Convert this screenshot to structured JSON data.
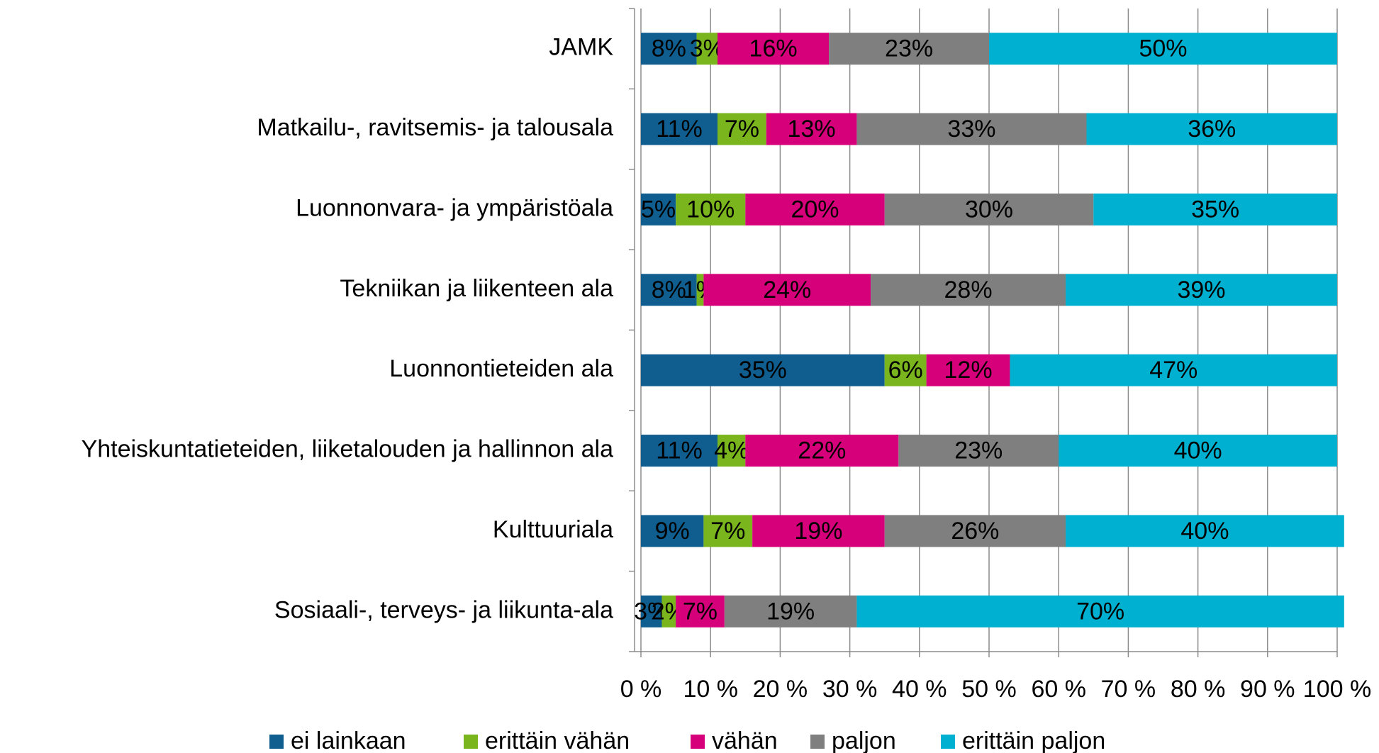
{
  "chart_data": {
    "type": "stacked_barh",
    "categories": [
      "JAMK",
      "Matkailu-, ravitsemis- ja talousala",
      "Luonnonvara- ja ympäristöala",
      "Tekniikan ja liikenteen ala",
      "Luonnontieteiden ala",
      "Yhteiskuntatieteiden, liiketalouden ja hallinnon ala",
      "Kulttuuriala",
      "Sosiaali-, terveys- ja liikunta-ala"
    ],
    "series": [
      {
        "name": "ei lainkaan",
        "color": "#0f5e8f",
        "values": [
          8,
          11,
          5,
          8,
          35,
          11,
          9,
          3
        ],
        "value_labels": [
          "8%",
          "11%",
          "5%",
          "8%",
          "35%",
          "11%",
          "9%",
          "3%"
        ]
      },
      {
        "name": "erittäin vähän",
        "color": "#7ab51d",
        "values": [
          3,
          7,
          10,
          1,
          6,
          4,
          7,
          2
        ],
        "value_labels": [
          "3%",
          "7%",
          "10%",
          "1%",
          "6%",
          "4%",
          "7%",
          "2%"
        ]
      },
      {
        "name": "vähän",
        "color": "#d6007a",
        "values": [
          16,
          13,
          20,
          24,
          12,
          22,
          19,
          7
        ],
        "value_labels": [
          "16%",
          "13%",
          "20%",
          "24%",
          "12%",
          "22%",
          "19%",
          "7%"
        ]
      },
      {
        "name": "paljon",
        "color": "#7f7f7f",
        "values": [
          23,
          33,
          30,
          28,
          null,
          23,
          26,
          19
        ],
        "value_labels": [
          "23%",
          "33%",
          "30%",
          "28%",
          null,
          "23%",
          "26%",
          "19%"
        ]
      },
      {
        "name": "erittäin paljon",
        "color": "#00b0d0",
        "values": [
          50,
          36,
          35,
          39,
          47,
          40,
          40,
          70
        ],
        "value_labels": [
          "50%",
          "36%",
          "35%",
          "39%",
          "47%",
          "40%",
          "40%",
          "70%"
        ]
      }
    ],
    "xlim": [
      0,
      100
    ],
    "xticks": [
      {
        "value": 0,
        "label": "0 %"
      },
      {
        "value": 10,
        "label": "10 %"
      },
      {
        "value": 20,
        "label": "20 %"
      },
      {
        "value": 30,
        "label": "30 %"
      },
      {
        "value": 40,
        "label": "40 %"
      },
      {
        "value": 50,
        "label": "50 %"
      },
      {
        "value": 60,
        "label": "60 %"
      },
      {
        "value": 70,
        "label": "70 %"
      },
      {
        "value": 80,
        "label": "80 %"
      },
      {
        "value": 90,
        "label": "90 %"
      },
      {
        "value": 100,
        "label": "100 %"
      }
    ],
    "grid": true,
    "legend": "bottom"
  }
}
